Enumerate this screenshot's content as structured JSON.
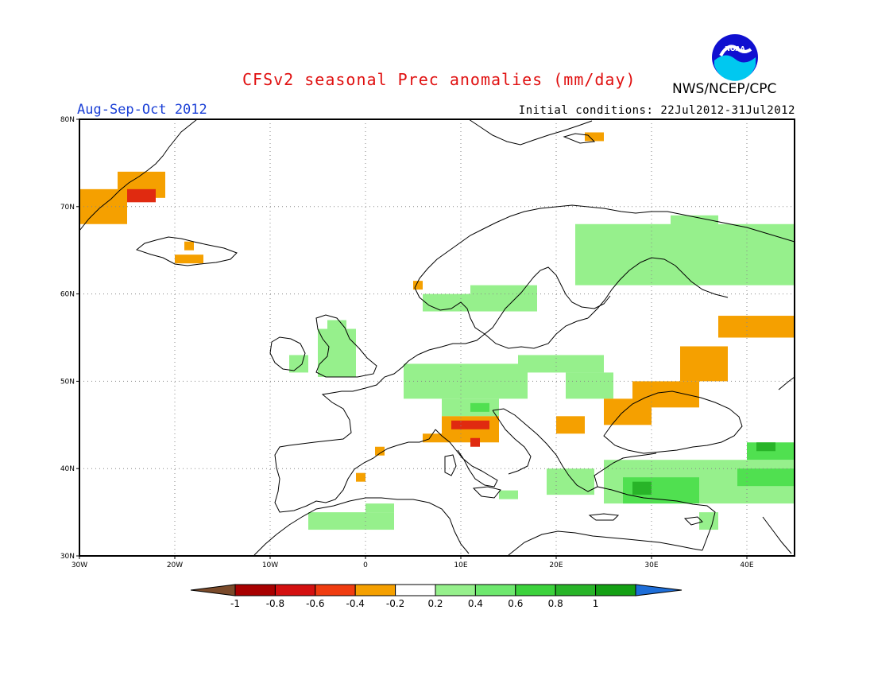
{
  "header": {
    "title": "CFSv2 seasonal Prec anomalies (mm/day)",
    "season": "Aug-Sep-Oct 2012",
    "initial_conditions": "Initial conditions: 22Jul2012-31Jul2012",
    "agency": "NWS/NCEP/CPC",
    "logo_text": "NOAA"
  },
  "colors": {
    "title": "#e01010",
    "season": "#1a3fd6",
    "ocean": "#ffffff",
    "coast": "#000000",
    "dry_06": "#e02a10",
    "dry_04": "#f5a000",
    "wet_02": "#96f08c",
    "wet_04": "#50e050",
    "wet_06": "#28b428"
  },
  "map": {
    "lon_range": [
      -30,
      45
    ],
    "lat_range": [
      30,
      80
    ],
    "lon_ticks": [
      {
        "v": -30,
        "label": "30W"
      },
      {
        "v": -20,
        "label": "20W"
      },
      {
        "v": -10,
        "label": "10W"
      },
      {
        "v": 0,
        "label": "0"
      },
      {
        "v": 10,
        "label": "10E"
      },
      {
        "v": 20,
        "label": "20E"
      },
      {
        "v": 30,
        "label": "30E"
      },
      {
        "v": 40,
        "label": "40E"
      }
    ],
    "lat_ticks": [
      {
        "v": 30,
        "label": "30N"
      },
      {
        "v": 40,
        "label": "40N"
      },
      {
        "v": 50,
        "label": "50N"
      },
      {
        "v": 60,
        "label": "60N"
      },
      {
        "v": 70,
        "label": "70N"
      },
      {
        "v": 80,
        "label": "80N"
      }
    ],
    "grid": true
  },
  "colorbar": {
    "bins": [
      "#7a4a2a",
      "#a80000",
      "#d41010",
      "#f03c10",
      "#f5a000",
      "#ffffff",
      "#96f08c",
      "#6ee86e",
      "#3cd23c",
      "#28b428",
      "#14a014",
      "#1e6ed8"
    ],
    "labels": [
      "-1",
      "-0.8",
      "-0.6",
      "-0.4",
      "-0.2",
      "0.2",
      "0.4",
      "0.6",
      "0.8",
      "1"
    ]
  },
  "anomalies": [
    {
      "level": "dry_04",
      "lon": [
        -30,
        -25
      ],
      "lat": [
        68,
        72
      ]
    },
    {
      "level": "dry_04",
      "lon": [
        -26,
        -21
      ],
      "lat": [
        71,
        74
      ]
    },
    {
      "level": "dry_06",
      "lon": [
        -25,
        -22
      ],
      "lat": [
        70.5,
        72
      ]
    },
    {
      "level": "dry_04",
      "lon": [
        -20,
        -17
      ],
      "lat": [
        63.5,
        64.5
      ]
    },
    {
      "level": "dry_04",
      "lon": [
        -19,
        -18
      ],
      "lat": [
        65,
        66
      ]
    },
    {
      "level": "dry_04",
      "lon": [
        23,
        25
      ],
      "lat": [
        77.5,
        78.5
      ]
    },
    {
      "level": "dry_04",
      "lon": [
        5,
        6
      ],
      "lat": [
        60.5,
        61.5
      ]
    },
    {
      "level": "wet_02",
      "lon": [
        -8,
        -6
      ],
      "lat": [
        51,
        53
      ]
    },
    {
      "level": "wet_02",
      "lon": [
        -5,
        -1
      ],
      "lat": [
        50.5,
        56
      ]
    },
    {
      "level": "wet_02",
      "lon": [
        -4,
        -2
      ],
      "lat": [
        56,
        57
      ]
    },
    {
      "level": "wet_02",
      "lon": [
        6,
        11
      ],
      "lat": [
        58,
        60
      ]
    },
    {
      "level": "wet_02",
      "lon": [
        11,
        18
      ],
      "lat": [
        58,
        61
      ]
    },
    {
      "level": "wet_02",
      "lon": [
        22,
        45
      ],
      "lat": [
        61,
        68
      ]
    },
    {
      "level": "wet_02",
      "lon": [
        32,
        37
      ],
      "lat": [
        67,
        69
      ]
    },
    {
      "level": "wet_02",
      "lon": [
        4,
        17
      ],
      "lat": [
        48,
        52
      ]
    },
    {
      "level": "wet_02",
      "lon": [
        16,
        25
      ],
      "lat": [
        51,
        53
      ]
    },
    {
      "level": "wet_02",
      "lon": [
        21,
        26
      ],
      "lat": [
        48,
        51
      ]
    },
    {
      "level": "wet_02",
      "lon": [
        8,
        14
      ],
      "lat": [
        46,
        48
      ]
    },
    {
      "level": "wet_04",
      "lon": [
        11,
        13
      ],
      "lat": [
        46.5,
        47.5
      ]
    },
    {
      "level": "wet_02",
      "lon": [
        -6,
        3
      ],
      "lat": [
        33,
        35
      ]
    },
    {
      "level": "wet_02",
      "lon": [
        0,
        3
      ],
      "lat": [
        35,
        36
      ]
    },
    {
      "level": "wet_02",
      "lon": [
        19,
        24
      ],
      "lat": [
        37,
        40
      ]
    },
    {
      "level": "wet_02",
      "lon": [
        14,
        16
      ],
      "lat": [
        36.5,
        37.5
      ]
    },
    {
      "level": "wet_02",
      "lon": [
        25,
        45
      ],
      "lat": [
        36,
        41
      ]
    },
    {
      "level": "wet_04",
      "lon": [
        27,
        35
      ],
      "lat": [
        36,
        39
      ]
    },
    {
      "level": "wet_06",
      "lon": [
        28,
        30
      ],
      "lat": [
        37,
        38.5
      ]
    },
    {
      "level": "wet_04",
      "lon": [
        39,
        45
      ],
      "lat": [
        38,
        40
      ]
    },
    {
      "level": "wet_04",
      "lon": [
        40,
        45
      ],
      "lat": [
        41,
        43
      ]
    },
    {
      "level": "wet_06",
      "lon": [
        41,
        43
      ],
      "lat": [
        42,
        43
      ]
    },
    {
      "level": "wet_02",
      "lon": [
        35,
        37
      ],
      "lat": [
        33,
        35
      ]
    },
    {
      "level": "dry_04",
      "lon": [
        8,
        14
      ],
      "lat": [
        43,
        46
      ]
    },
    {
      "level": "dry_06",
      "lon": [
        9,
        13
      ],
      "lat": [
        44.5,
        45.5
      ]
    },
    {
      "level": "dry_06",
      "lon": [
        11,
        12
      ],
      "lat": [
        42.5,
        43.5
      ]
    },
    {
      "level": "dry_04",
      "lon": [
        6,
        8
      ],
      "lat": [
        43,
        44
      ]
    },
    {
      "level": "dry_04",
      "lon": [
        1,
        2
      ],
      "lat": [
        41.5,
        42.5
      ]
    },
    {
      "level": "dry_04",
      "lon": [
        -1,
        0
      ],
      "lat": [
        38.5,
        39.5
      ]
    },
    {
      "level": "dry_04",
      "lon": [
        20,
        23
      ],
      "lat": [
        44,
        46
      ]
    },
    {
      "level": "dry_04",
      "lon": [
        25,
        30
      ],
      "lat": [
        45,
        48
      ]
    },
    {
      "level": "dry_04",
      "lon": [
        28,
        35
      ],
      "lat": [
        47,
        50
      ]
    },
    {
      "level": "dry_04",
      "lon": [
        33,
        38
      ],
      "lat": [
        50,
        54
      ]
    },
    {
      "level": "dry_04",
      "lon": [
        37,
        45
      ],
      "lat": [
        55,
        57.5
      ]
    }
  ]
}
